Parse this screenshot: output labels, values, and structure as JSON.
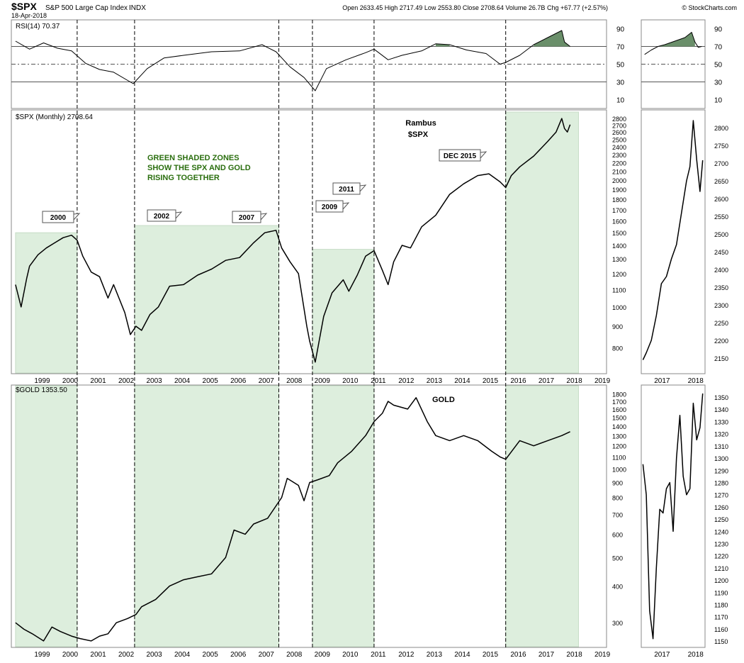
{
  "header": {
    "symbol": "$SPX",
    "name": "S&P 500 Large Cap Index",
    "exchange": "INDX",
    "date": "18-Apr-2018",
    "brand": "© StockCharts.com",
    "ohlc": "Open 2633.45  High 2717.49  Low 2553.80  Close 2708.64  Volume 26.7B  Chg +67.77 (+2.57%)"
  },
  "colors": {
    "shade": "#ddeedd",
    "shade_edge": "#c6dcc6",
    "rsi_over": "#6a8f6a",
    "rsi_under": "#9e6b6b",
    "grid": "#cccccc",
    "line": "#000000"
  },
  "annotations": {
    "green_note": [
      "GREEN SHADED ZONES",
      "SHOW THE SPX AND GOLD",
      "RISING TOGETHER"
    ],
    "rambus": [
      "Rambus",
      "$SPX"
    ],
    "gold": "GOLD",
    "callouts": [
      "2000",
      "2002",
      "2007",
      "2009",
      "2011",
      "DEC 2015"
    ]
  },
  "chart_data": [
    {
      "id": "rsi",
      "type": "line",
      "title": "RSI(14) 70.37",
      "y_ticks": [
        90,
        70,
        50,
        30,
        10
      ],
      "ylim": [
        0,
        100
      ],
      "reference_lines": [
        70,
        50,
        30
      ],
      "x": [
        1998.5,
        1999.0,
        1999.5,
        2000.0,
        2000.5,
        2001.0,
        2001.5,
        2002.0,
        2002.7,
        2003.2,
        2003.8,
        2004.5,
        2005.5,
        2006.5,
        2007.3,
        2007.8,
        2008.3,
        2008.8,
        2009.2,
        2009.6,
        2010.3,
        2011.0,
        2011.3,
        2011.8,
        2012.3,
        2013.0,
        2013.5,
        2014.0,
        2014.6,
        2015.3,
        2015.8,
        2016.0,
        2016.5,
        2017.0,
        2017.5,
        2018.0,
        2018.1,
        2018.3
      ],
      "y": [
        76,
        67,
        74,
        68,
        65,
        51,
        44,
        41,
        28,
        45,
        57,
        60,
        64,
        65,
        72,
        64,
        47,
        35,
        20,
        45,
        55,
        63,
        67,
        55,
        60,
        65,
        73,
        72,
        66,
        62,
        50,
        52,
        60,
        72,
        80,
        88,
        75,
        70
      ],
      "zoom_x": [
        2016.6,
        2016.8,
        2017.0,
        2017.2,
        2017.5,
        2017.8,
        2018.0,
        2018.1,
        2018.2,
        2018.3
      ],
      "zoom_y": [
        61,
        66,
        70,
        72,
        76,
        80,
        86,
        75,
        69,
        70
      ]
    },
    {
      "id": "spx",
      "type": "line",
      "title": "$SPX (Monthly) 2708.64",
      "scale": "log",
      "ylim": [
        700,
        2900
      ],
      "y_ticks": [
        800,
        900,
        1000,
        1100,
        1200,
        1300,
        1400,
        1500,
        1600,
        1700,
        1800,
        1900,
        2000,
        2100,
        2200,
        2300,
        2400,
        2500,
        2600,
        2700,
        2800
      ],
      "x_ticks": [
        1999,
        2000,
        2001,
        2002,
        2003,
        2004,
        2005,
        2006,
        2007,
        2008,
        2009,
        2010,
        2011,
        2012,
        2013,
        2014,
        2015,
        2016,
        2017,
        2018,
        2019
      ],
      "x": [
        1998.5,
        1998.7,
        1998.9,
        1999.0,
        1999.3,
        1999.6,
        1999.9,
        2000.2,
        2000.5,
        2000.7,
        2000.9,
        2001.2,
        2001.5,
        2001.8,
        2002.0,
        2002.4,
        2002.6,
        2002.8,
        2003.0,
        2003.3,
        2003.6,
        2004.0,
        2004.5,
        2005.0,
        2005.5,
        2006.0,
        2006.5,
        2007.0,
        2007.4,
        2007.8,
        2008.0,
        2008.3,
        2008.6,
        2008.9,
        2009.0,
        2009.2,
        2009.5,
        2009.8,
        2010.2,
        2010.4,
        2010.7,
        2011.0,
        2011.3,
        2011.6,
        2011.8,
        2012.0,
        2012.3,
        2012.6,
        2013.0,
        2013.5,
        2014.0,
        2014.5,
        2015.0,
        2015.4,
        2015.8,
        2016.0,
        2016.2,
        2016.5,
        2017.0,
        2017.5,
        2017.8,
        2018.0,
        2018.1,
        2018.2,
        2018.3
      ],
      "y": [
        1130,
        1000,
        1170,
        1250,
        1330,
        1380,
        1420,
        1460,
        1480,
        1440,
        1320,
        1210,
        1180,
        1050,
        1130,
        970,
        860,
        900,
        880,
        960,
        1000,
        1120,
        1130,
        1190,
        1230,
        1290,
        1310,
        1420,
        1500,
        1520,
        1380,
        1280,
        1200,
        900,
        830,
        740,
        950,
        1080,
        1160,
        1090,
        1190,
        1320,
        1360,
        1220,
        1130,
        1280,
        1400,
        1380,
        1550,
        1650,
        1850,
        1960,
        2050,
        2070,
        1980,
        1920,
        2050,
        2150,
        2280,
        2470,
        2600,
        2800,
        2650,
        2600,
        2708
      ],
      "zoom_y_ticks": [
        2150,
        2200,
        2250,
        2300,
        2350,
        2400,
        2450,
        2500,
        2550,
        2600,
        2650,
        2700,
        2750,
        2800
      ],
      "zoom_x": [
        2016.55,
        2016.65,
        2016.8,
        2016.95,
        2017.1,
        2017.25,
        2017.4,
        2017.55,
        2017.7,
        2017.85,
        2017.95,
        2018.05,
        2018.15,
        2018.25,
        2018.33
      ],
      "zoom_y": [
        2145,
        2165,
        2200,
        2270,
        2360,
        2380,
        2430,
        2470,
        2560,
        2650,
        2690,
        2820,
        2710,
        2620,
        2708
      ],
      "zoom_x_ticks": [
        2017,
        2018
      ]
    },
    {
      "id": "gold",
      "type": "line",
      "title": "$GOLD 1353.50",
      "scale": "log",
      "ylim": [
        250,
        1900
      ],
      "y_ticks": [
        300,
        400,
        500,
        600,
        700,
        800,
        900,
        1000,
        1100,
        1200,
        1300,
        1400,
        1500,
        1600,
        1700,
        1800
      ],
      "x_ticks": [
        1999,
        2000,
        2001,
        2002,
        2003,
        2004,
        2005,
        2006,
        2007,
        2008,
        2009,
        2010,
        2011,
        2012,
        2013,
        2014,
        2015,
        2016,
        2017,
        2018,
        2019
      ],
      "x": [
        1998.5,
        1998.8,
        1999.1,
        1999.5,
        1999.8,
        2000.1,
        2000.5,
        2000.8,
        2001.2,
        2001.5,
        2001.8,
        2002.1,
        2002.5,
        2002.8,
        2003.0,
        2003.5,
        2004.0,
        2004.5,
        2005.0,
        2005.5,
        2006.0,
        2006.3,
        2006.7,
        2007.0,
        2007.5,
        2008.0,
        2008.2,
        2008.6,
        2008.8,
        2009.0,
        2009.3,
        2009.7,
        2010.0,
        2010.5,
        2011.0,
        2011.3,
        2011.6,
        2011.8,
        2012.0,
        2012.5,
        2012.8,
        2013.2,
        2013.5,
        2014.0,
        2014.5,
        2015.0,
        2015.5,
        2015.8,
        2016.0,
        2016.5,
        2017.0,
        2017.5,
        2018.0,
        2018.3
      ],
      "y": [
        300,
        285,
        275,
        260,
        290,
        280,
        270,
        265,
        260,
        270,
        275,
        300,
        310,
        320,
        340,
        360,
        400,
        420,
        430,
        440,
        500,
        620,
        600,
        650,
        680,
        800,
        930,
        880,
        780,
        900,
        920,
        950,
        1050,
        1150,
        1300,
        1450,
        1550,
        1700,
        1650,
        1600,
        1750,
        1450,
        1300,
        1250,
        1300,
        1250,
        1150,
        1100,
        1080,
        1250,
        1200,
        1250,
        1300,
        1340
      ],
      "zoom_y_ticks": [
        1150,
        1160,
        1170,
        1180,
        1190,
        1200,
        1210,
        1220,
        1230,
        1240,
        1250,
        1260,
        1270,
        1280,
        1290,
        1300,
        1310,
        1320,
        1330,
        1340,
        1350
      ],
      "zoom_x": [
        2016.55,
        2016.65,
        2016.75,
        2016.85,
        2016.95,
        2017.05,
        2017.15,
        2017.25,
        2017.35,
        2017.45,
        2017.55,
        2017.65,
        2017.75,
        2017.85,
        2017.95,
        2018.05,
        2018.15,
        2018.25,
        2018.33
      ],
      "zoom_y": [
        1295,
        1270,
        1175,
        1152,
        1210,
        1258,
        1255,
        1275,
        1280,
        1240,
        1300,
        1335,
        1285,
        1270,
        1275,
        1345,
        1315,
        1325,
        1353
      ],
      "zoom_x_ticks": [
        2017,
        2018
      ]
    }
  ],
  "shaded_zones": [
    {
      "x0": 1998.5,
      "x1": 2000.7,
      "top": 1500
    },
    {
      "x0": 2002.75,
      "x1": 2007.9,
      "top": 1560
    },
    {
      "x0": 2009.1,
      "x1": 2011.3,
      "top": 1370
    },
    {
      "x0": 2016.0,
      "x1": 2018.6,
      "top": 2900
    }
  ],
  "vlines": [
    2000.7,
    2002.75,
    2007.9,
    2009.1,
    2011.3,
    2016.0
  ]
}
